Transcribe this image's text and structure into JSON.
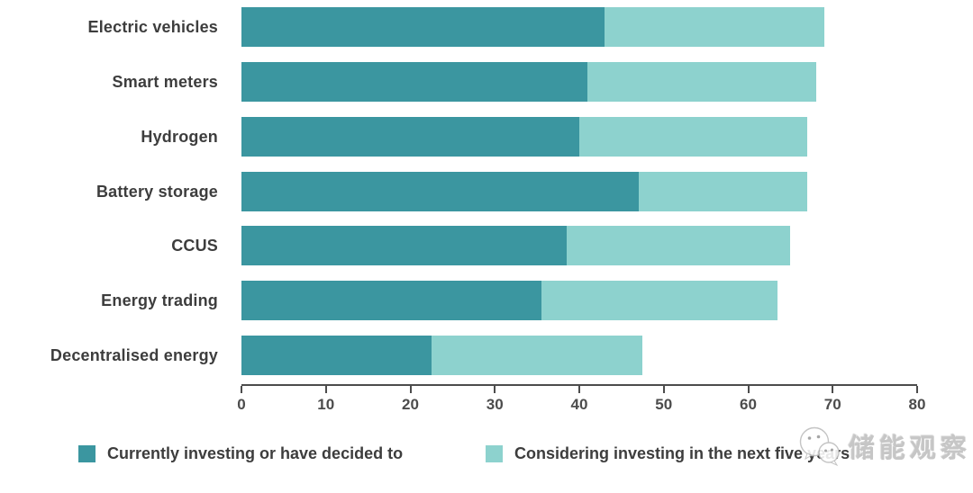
{
  "chart_data": {
    "type": "bar",
    "orientation": "horizontal",
    "title": "",
    "xlabel": "",
    "ylabel": "",
    "xlim": [
      0,
      80
    ],
    "xticks": [
      0,
      10,
      20,
      30,
      40,
      50,
      60,
      70,
      80
    ],
    "grid": false,
    "legend_position": "bottom",
    "categories": [
      "Electric vehicles",
      "Smart meters",
      "Hydrogen",
      "Battery storage",
      "CCUS",
      "Energy trading",
      "Decentralised energy"
    ],
    "series": [
      {
        "name": "Currently investing or have decided to",
        "color": "#3B96A0",
        "values": [
          43,
          41,
          40,
          47,
          38.5,
          35.5,
          22.5
        ]
      },
      {
        "name": "Considering investing in the next five years",
        "color": "#8DD2CE",
        "values": [
          26,
          27,
          27,
          20,
          26.5,
          28,
          25
        ]
      }
    ],
    "totals": [
      69,
      68,
      67,
      67,
      65,
      63.5,
      47.5
    ]
  },
  "colors": {
    "axis": "#4c4c4c",
    "label_text": "#3d3d3d",
    "background": "#ffffff",
    "watermark_gray": "#c6c6c6"
  },
  "watermark": {
    "icon": "wechat-icon",
    "text": "储能观察"
  }
}
